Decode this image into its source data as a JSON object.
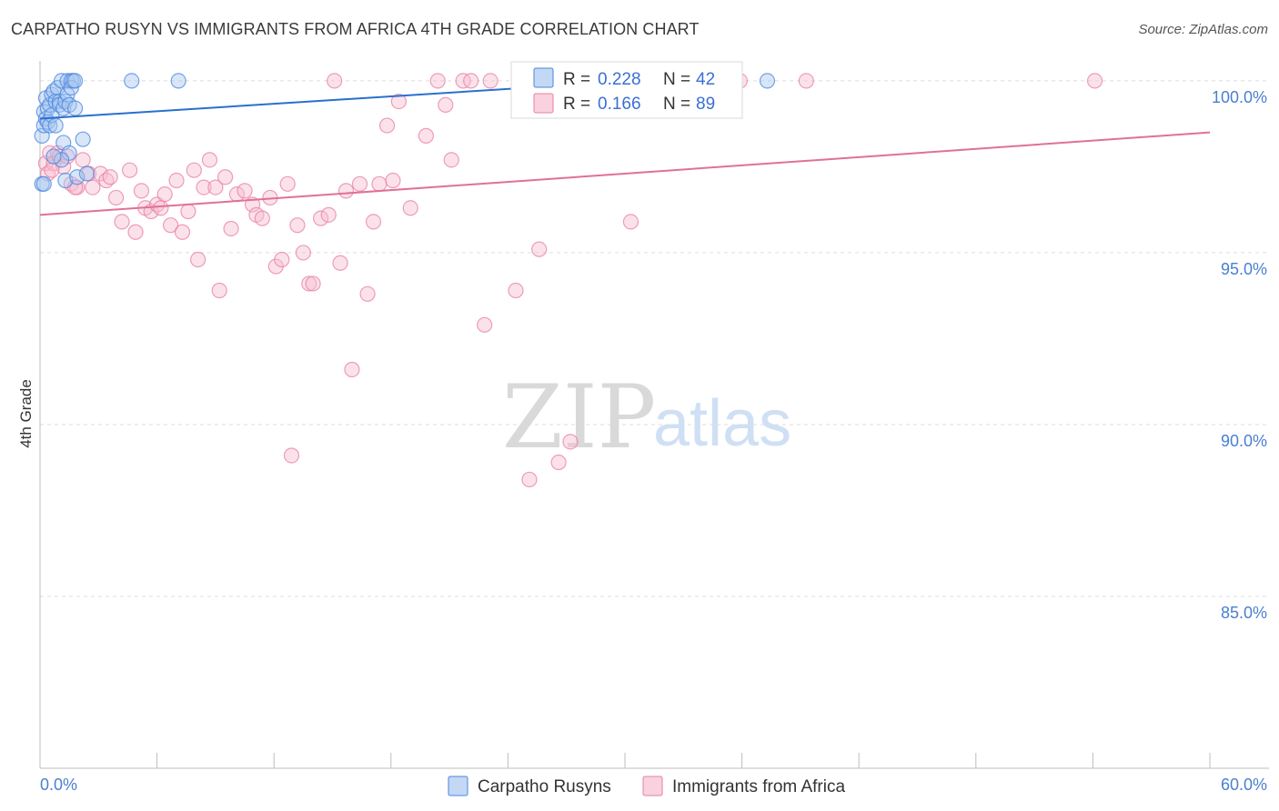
{
  "title": "CARPATHO RUSYN VS IMMIGRANTS FROM AFRICA 4TH GRADE CORRELATION CHART",
  "source": "Source: ZipAtlas.com",
  "watermark": {
    "zip": "ZIP",
    "atlas": "atlas"
  },
  "colors": {
    "blue": "#4a86e0",
    "blue_fill": "#a9c8f0",
    "blue_line": "#2a6fd0",
    "pink": "#e87fa6",
    "pink_fill": "#f6bed1",
    "pink_line": "#e0709a",
    "tick_text": "#4a7fd0",
    "grid": "#dcdcdc"
  },
  "chart_data": {
    "type": "scatter",
    "title": "CARPATHO RUSYN VS IMMIGRANTS FROM AFRICA 4TH GRADE CORRELATION CHART",
    "xlabel": "",
    "ylabel": "4th Grade",
    "xlim": [
      0,
      60
    ],
    "ylim": [
      80,
      100.5
    ],
    "x_tick_labels": [
      "0.0%",
      "60.0%"
    ],
    "y_ticks": [
      {
        "value": 100,
        "label": "100.0%"
      },
      {
        "value": 95,
        "label": "95.0%"
      },
      {
        "value": 90,
        "label": "90.0%"
      },
      {
        "value": 85,
        "label": "85.0%"
      }
    ],
    "legend": {
      "entries": [
        {
          "r_label": "R =",
          "r_value": "0.228",
          "n_label": "N =",
          "n_value": "42"
        },
        {
          "r_label": "R =",
          "r_value": "0.166",
          "n_label": "N =",
          "n_value": "89"
        }
      ]
    },
    "series": [
      {
        "name": "Carpatho Rusyns",
        "color": "blue",
        "trend": {
          "x0": 0,
          "y0": 98.9,
          "x1": 25,
          "y1": 99.8
        },
        "points": [
          [
            0.1,
            97.0
          ],
          [
            0.1,
            98.4
          ],
          [
            0.2,
            98.7
          ],
          [
            0.2,
            99.1
          ],
          [
            0.3,
            98.9
          ],
          [
            0.3,
            99.5
          ],
          [
            0.4,
            98.8
          ],
          [
            0.4,
            99.2
          ],
          [
            0.5,
            99.3
          ],
          [
            0.5,
            98.7
          ],
          [
            0.6,
            99.6
          ],
          [
            0.6,
            99.0
          ],
          [
            0.7,
            99.7
          ],
          [
            0.8,
            99.4
          ],
          [
            0.8,
            98.7
          ],
          [
            0.9,
            99.8
          ],
          [
            1.0,
            99.4
          ],
          [
            1.0,
            99.3
          ],
          [
            1.1,
            100.0
          ],
          [
            1.2,
            99.2
          ],
          [
            1.2,
            98.2
          ],
          [
            1.3,
            99.4
          ],
          [
            1.4,
            99.6
          ],
          [
            1.4,
            100.0
          ],
          [
            1.5,
            99.3
          ],
          [
            1.6,
            100.0
          ],
          [
            1.6,
            99.8
          ],
          [
            1.7,
            100.0
          ],
          [
            1.8,
            100.0
          ],
          [
            1.8,
            99.2
          ],
          [
            1.5,
            97.9
          ],
          [
            1.3,
            97.1
          ],
          [
            1.1,
            97.7
          ],
          [
            1.9,
            97.2
          ],
          [
            2.2,
            98.3
          ],
          [
            2.4,
            97.3
          ],
          [
            4.7,
            100.0
          ],
          [
            7.1,
            100.0
          ],
          [
            27.2,
            100.0
          ],
          [
            37.3,
            100.0
          ],
          [
            0.2,
            97.0
          ],
          [
            0.7,
            97.8
          ]
        ]
      },
      {
        "name": "Immigrants from Africa",
        "color": "pink",
        "trend": {
          "x0": 0,
          "y0": 96.1,
          "x1": 60,
          "y1": 98.5
        },
        "points": [
          [
            0.3,
            97.6
          ],
          [
            0.4,
            97.3
          ],
          [
            0.5,
            97.9
          ],
          [
            0.7,
            97.6
          ],
          [
            0.9,
            97.9
          ],
          [
            1.0,
            97.8
          ],
          [
            1.2,
            97.5
          ],
          [
            1.4,
            97.8
          ],
          [
            1.6,
            97.0
          ],
          [
            1.9,
            96.9
          ],
          [
            2.2,
            97.7
          ],
          [
            2.5,
            97.3
          ],
          [
            2.7,
            96.9
          ],
          [
            3.1,
            97.3
          ],
          [
            3.4,
            97.1
          ],
          [
            3.6,
            97.2
          ],
          [
            3.9,
            96.6
          ],
          [
            4.2,
            95.9
          ],
          [
            4.6,
            97.4
          ],
          [
            4.9,
            95.6
          ],
          [
            5.2,
            96.8
          ],
          [
            5.4,
            96.3
          ],
          [
            5.7,
            96.2
          ],
          [
            6.0,
            96.4
          ],
          [
            6.2,
            96.3
          ],
          [
            6.4,
            96.7
          ],
          [
            6.7,
            95.8
          ],
          [
            7.0,
            97.1
          ],
          [
            7.3,
            95.6
          ],
          [
            7.6,
            96.2
          ],
          [
            7.9,
            97.4
          ],
          [
            8.1,
            94.8
          ],
          [
            8.4,
            96.9
          ],
          [
            8.7,
            97.7
          ],
          [
            9.0,
            96.9
          ],
          [
            9.2,
            93.9
          ],
          [
            9.5,
            97.2
          ],
          [
            9.8,
            95.7
          ],
          [
            10.1,
            96.7
          ],
          [
            10.5,
            96.8
          ],
          [
            10.9,
            96.4
          ],
          [
            11.1,
            96.1
          ],
          [
            11.4,
            96.0
          ],
          [
            11.8,
            96.6
          ],
          [
            12.1,
            94.6
          ],
          [
            12.4,
            94.8
          ],
          [
            12.7,
            97.0
          ],
          [
            12.9,
            89.1
          ],
          [
            13.2,
            95.8
          ],
          [
            13.5,
            95.0
          ],
          [
            13.8,
            94.1
          ],
          [
            14.0,
            94.1
          ],
          [
            14.4,
            96.0
          ],
          [
            14.8,
            96.1
          ],
          [
            15.1,
            100.0
          ],
          [
            15.4,
            94.7
          ],
          [
            15.7,
            96.8
          ],
          [
            16.0,
            91.6
          ],
          [
            16.4,
            97.0
          ],
          [
            16.8,
            93.8
          ],
          [
            17.1,
            95.9
          ],
          [
            17.4,
            97.0
          ],
          [
            17.8,
            98.7
          ],
          [
            18.1,
            97.1
          ],
          [
            18.4,
            99.4
          ],
          [
            19.0,
            96.3
          ],
          [
            19.8,
            98.4
          ],
          [
            20.4,
            100.0
          ],
          [
            20.8,
            99.3
          ],
          [
            21.1,
            97.7
          ],
          [
            21.7,
            100.0
          ],
          [
            22.1,
            100.0
          ],
          [
            22.8,
            92.9
          ],
          [
            23.1,
            100.0
          ],
          [
            24.4,
            93.9
          ],
          [
            24.6,
            100.0
          ],
          [
            25.1,
            88.4
          ],
          [
            25.6,
            95.1
          ],
          [
            26.6,
            88.9
          ],
          [
            27.2,
            89.5
          ],
          [
            30.3,
            95.9
          ],
          [
            31.1,
            100.0
          ],
          [
            32.5,
            100.0
          ],
          [
            34.2,
            100.0
          ],
          [
            35.9,
            100.0
          ],
          [
            39.3,
            100.0
          ],
          [
            54.1,
            100.0
          ],
          [
            0.6,
            97.4
          ],
          [
            1.8,
            96.9
          ]
        ]
      }
    ],
    "bottom_legend": [
      "Carpatho Rusyns",
      "Immigrants from Africa"
    ]
  }
}
